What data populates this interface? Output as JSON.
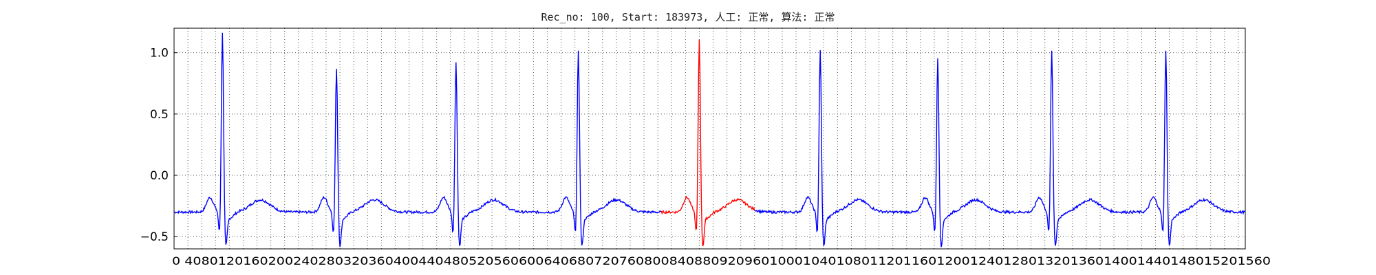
{
  "chart_data": {
    "type": "line",
    "title": "Rec_no: 100, Start: 183973, 人工: 正常, 算法: 正常",
    "xlabel": "",
    "ylabel": "",
    "xlim": [
      0,
      1550
    ],
    "ylim": [
      -0.6,
      1.2
    ],
    "grid": true,
    "grid_style": "dotted",
    "yticks": [
      -0.5,
      0.0,
      0.5,
      1.0
    ],
    "ytick_labels": [
      "−0.5",
      "0.0",
      "0.5",
      "1.0"
    ],
    "xtick_step": 20,
    "xtick_max": 1560,
    "xtick_label_text": "0 4080120160200240280320360400440480520560600640680720760800840880920960100010401080112011601200124012801320136014001440148015201560",
    "colors": {
      "normal": "#0000ff",
      "highlight": "#ff0000",
      "axes": "#000000",
      "grid": "#555555"
    },
    "signal": {
      "x_end": 1550,
      "r_peaks": [
        {
          "x": 70,
          "amp": 1.18
        },
        {
          "x": 235,
          "amp": 0.9
        },
        {
          "x": 408,
          "amp": 0.94
        },
        {
          "x": 585,
          "amp": 1.03
        },
        {
          "x": 760,
          "amp": 1.13
        },
        {
          "x": 935,
          "amp": 1.04
        },
        {
          "x": 1105,
          "amp": 0.97
        },
        {
          "x": 1270,
          "amp": 1.04
        },
        {
          "x": 1435,
          "amp": 1.04
        }
      ],
      "baseline": -0.3,
      "highlight_range": [
        705,
        840
      ]
    }
  }
}
